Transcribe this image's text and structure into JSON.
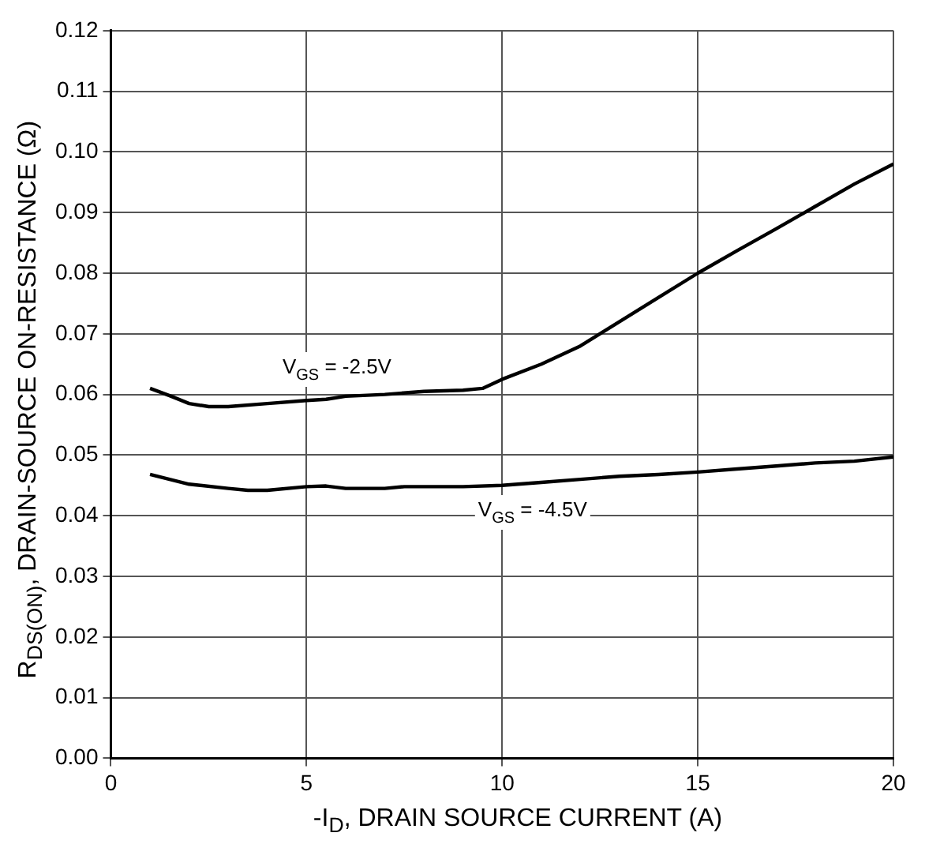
{
  "chart_data": {
    "type": "line",
    "xlabel": "-I$_{D}$, DRAIN SOURCE CURRENT (A)",
    "ylabel": "R$_{DS(ON)}$, DRAIN-SOURCE ON-RESISTANCE (Ω)",
    "xlim": [
      0,
      20
    ],
    "xticks": [
      0,
      5,
      10,
      15,
      20
    ],
    "ylim": [
      0,
      0.12
    ],
    "yticks": [
      {
        "value": 0,
        "label": "0.00"
      },
      {
        "value": 0.01,
        "label": "0.01"
      },
      {
        "value": 0.02,
        "label": "0.02"
      },
      {
        "value": 0.03,
        "label": "0.03"
      },
      {
        "value": 0.04,
        "label": "0.04"
      },
      {
        "value": 0.05,
        "label": "0.05"
      },
      {
        "value": 0.06,
        "label": "0.06"
      },
      {
        "value": 0.07,
        "label": "0.07"
      },
      {
        "value": 0.08,
        "label": "0.08"
      },
      {
        "value": 0.09,
        "label": "0.09"
      },
      {
        "value": 0.1,
        "label": "0.10"
      },
      {
        "value": 0.11,
        "label": "0.11"
      },
      {
        "value": 0.12,
        "label": "0.12"
      }
    ],
    "grid": true,
    "legend": false,
    "marker": "none",
    "line_style": "solid",
    "series": [
      {
        "name": "V$_{GS}$ = -2.5V",
        "color": "#000000",
        "x": [
          1,
          1.5,
          2,
          2.5,
          3,
          4,
          5,
          5.5,
          6,
          7,
          8,
          9,
          9.5,
          10,
          11,
          12,
          13,
          14,
          15,
          16,
          17,
          18,
          19,
          20
        ],
        "values": [
          0.061,
          0.0598,
          0.0585,
          0.058,
          0.058,
          0.0585,
          0.059,
          0.0592,
          0.0597,
          0.06,
          0.0605,
          0.0607,
          0.061,
          0.0625,
          0.065,
          0.068,
          0.072,
          0.076,
          0.08,
          0.0837,
          0.0873,
          0.091,
          0.0947,
          0.098
        ]
      },
      {
        "name": "V$_{GS}$ = -4.5V",
        "color": "#000000",
        "x": [
          1,
          2,
          3,
          3.5,
          4,
          5,
          5.5,
          6,
          7,
          7.5,
          9,
          10,
          11,
          12,
          13,
          14,
          15,
          16,
          17,
          18,
          19,
          20
        ],
        "values": [
          0.0468,
          0.0452,
          0.0445,
          0.0442,
          0.0442,
          0.0448,
          0.0449,
          0.0445,
          0.0445,
          0.0448,
          0.0448,
          0.045,
          0.0455,
          0.046,
          0.0465,
          0.0468,
          0.0472,
          0.0477,
          0.0482,
          0.0487,
          0.049,
          0.0497
        ]
      }
    ]
  }
}
